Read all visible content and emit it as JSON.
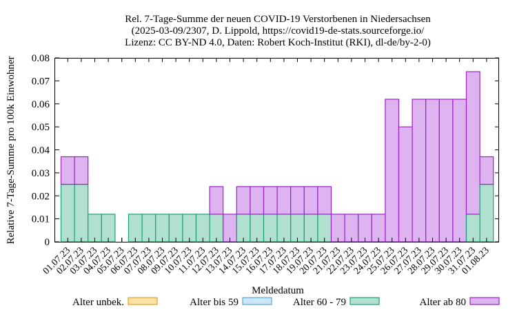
{
  "chart_data": {
    "type": "bar",
    "stacked": true,
    "title_lines": [
      "Rel. 7-Tage-Summe der neuen COVID-19 Verstorbenen in Niedersachsen",
      "(2025-03-09/2307, D. Lippold, https://covid19-de-stats.sourceforge.io/",
      "Lizenz: CC BY-ND 4.0, Daten: Robert Koch-Institut (RKI), dl-de/by-2-0)"
    ],
    "xlabel": "Meldedatum",
    "ylabel": "Relative 7-Tage-Summe pro 100k Einwohner",
    "ylim": [
      0,
      0.08
    ],
    "yticks": [
      "0",
      "0.01",
      "0.02",
      "0.03",
      "0.04",
      "0.05",
      "0.06",
      "0.07",
      "0.08"
    ],
    "grid": false,
    "legend_position": "bottom",
    "categories": [
      "01.07.23",
      "02.07.23",
      "03.07.23",
      "04.07.23",
      "05.07.23",
      "06.07.23",
      "07.07.23",
      "08.07.23",
      "09.07.23",
      "10.07.23",
      "11.07.23",
      "12.07.23",
      "13.07.23",
      "14.07.23",
      "15.07.23",
      "16.07.23",
      "17.07.23",
      "18.07.23",
      "19.07.23",
      "20.07.23",
      "21.07.23",
      "22.07.23",
      "23.07.23",
      "24.07.23",
      "25.07.23",
      "26.07.23",
      "27.07.23",
      "28.07.23",
      "29.07.23",
      "30.07.23",
      "31.07.23",
      "01.08.23"
    ],
    "series": [
      {
        "name": "Alter unbek.",
        "fill": "#fbe1a6",
        "stroke": "#e6a020",
        "values": [
          0,
          0,
          0,
          0,
          0,
          0,
          0,
          0,
          0,
          0,
          0,
          0,
          0,
          0,
          0,
          0,
          0,
          0,
          0,
          0,
          0,
          0,
          0,
          0,
          0,
          0,
          0,
          0,
          0,
          0,
          0,
          0
        ]
      },
      {
        "name": "Alter bis 59",
        "fill": "#cde6f7",
        "stroke": "#56a8de",
        "values": [
          0,
          0,
          0,
          0,
          0,
          0,
          0,
          0,
          0,
          0,
          0,
          0,
          0,
          0,
          0,
          0,
          0,
          0,
          0,
          0,
          0,
          0,
          0,
          0,
          0,
          0,
          0,
          0,
          0,
          0,
          0,
          0
        ]
      },
      {
        "name": "Alter 60 - 79",
        "fill": "#b2e0d0",
        "stroke": "#1a9e78",
        "values": [
          0.025,
          0.025,
          0.012,
          0.012,
          0,
          0.012,
          0.012,
          0.012,
          0.012,
          0.012,
          0.012,
          0.012,
          0,
          0.012,
          0.012,
          0.012,
          0.012,
          0.012,
          0.012,
          0.012,
          0,
          0,
          0,
          0,
          0,
          0,
          0,
          0,
          0,
          0,
          0.012,
          0.025
        ]
      },
      {
        "name": "Alter ab 80",
        "fill": "#ddb3f0",
        "stroke": "#9a22c8",
        "values": [
          0.012,
          0.012,
          0,
          0,
          0,
          0,
          0,
          0,
          0,
          0,
          0,
          0.012,
          0.012,
          0.012,
          0.012,
          0.012,
          0.012,
          0.012,
          0.012,
          0.012,
          0.012,
          0.012,
          0.012,
          0.012,
          0.062,
          0.05,
          0.062,
          0.062,
          0.062,
          0.062,
          0.062,
          0.012
        ]
      }
    ]
  }
}
